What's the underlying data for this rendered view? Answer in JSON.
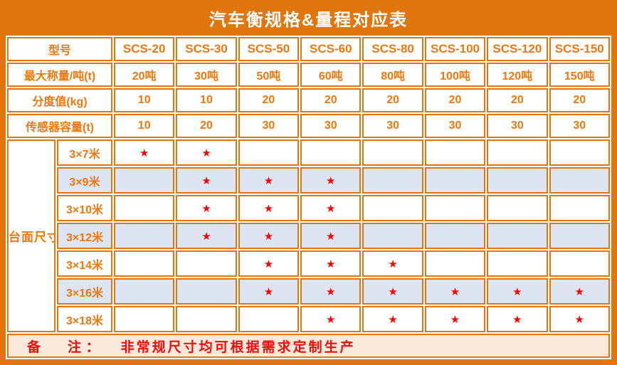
{
  "title": "汽车衡规格&量程对应表",
  "colors": {
    "frame_orange": "#E2760E",
    "text_orange": "#F1760B",
    "row_blue": "#DCE5F1",
    "note_bg": "#FBE9DB",
    "star_red": "#FE0000",
    "note_red": "#F00C0C",
    "cell_white": "#FFFFFF",
    "title_text": "#FFFFFF"
  },
  "table": {
    "header": {
      "model_label": "型号",
      "models": [
        "SCS-20",
        "SCS-30",
        "SCS-50",
        "SCS-60",
        "SCS-80",
        "SCS-100",
        "SCS-120",
        "SCS-150"
      ]
    },
    "spec_rows": [
      {
        "label": "最大称量/吨(t)",
        "values": [
          "20吨",
          "30吨",
          "50吨",
          "60吨",
          "80吨",
          "100吨",
          "120吨",
          "150吨"
        ]
      },
      {
        "label": "分度值(kg)",
        "values": [
          "10",
          "10",
          "20",
          "20",
          "20",
          "20",
          "20",
          "20"
        ]
      },
      {
        "label": "传感器容量(t)",
        "values": [
          "10",
          "20",
          "30",
          "30",
          "30",
          "30",
          "30",
          "30"
        ]
      }
    ],
    "platform": {
      "label": "台面尺寸",
      "rows": [
        {
          "size": "3×7米",
          "highlight": false,
          "stars": [
            "★",
            "★",
            "",
            "",
            "",
            "",
            "",
            ""
          ]
        },
        {
          "size": "3×9米",
          "highlight": true,
          "stars": [
            "",
            "★",
            "★",
            "★",
            "",
            "",
            "",
            ""
          ]
        },
        {
          "size": "3×10米",
          "highlight": false,
          "stars": [
            "",
            "★",
            "★",
            "★",
            "",
            "",
            "",
            ""
          ]
        },
        {
          "size": "3×12米",
          "highlight": true,
          "stars": [
            "",
            "★",
            "★",
            "★",
            "",
            "",
            "",
            ""
          ]
        },
        {
          "size": "3×14米",
          "highlight": false,
          "stars": [
            "",
            "",
            "★",
            "★",
            "★",
            "",
            "",
            ""
          ]
        },
        {
          "size": "3×16米",
          "highlight": true,
          "stars": [
            "",
            "",
            "★",
            "★",
            "★",
            "★",
            "★",
            "★"
          ]
        },
        {
          "size": "3×18米",
          "highlight": false,
          "stars": [
            "",
            "",
            "",
            "★",
            "★",
            "★",
            "★",
            "★"
          ]
        }
      ]
    },
    "note": {
      "label": "备　　注 ：",
      "text": "非常规尺寸均可根据需求定制生产"
    }
  }
}
